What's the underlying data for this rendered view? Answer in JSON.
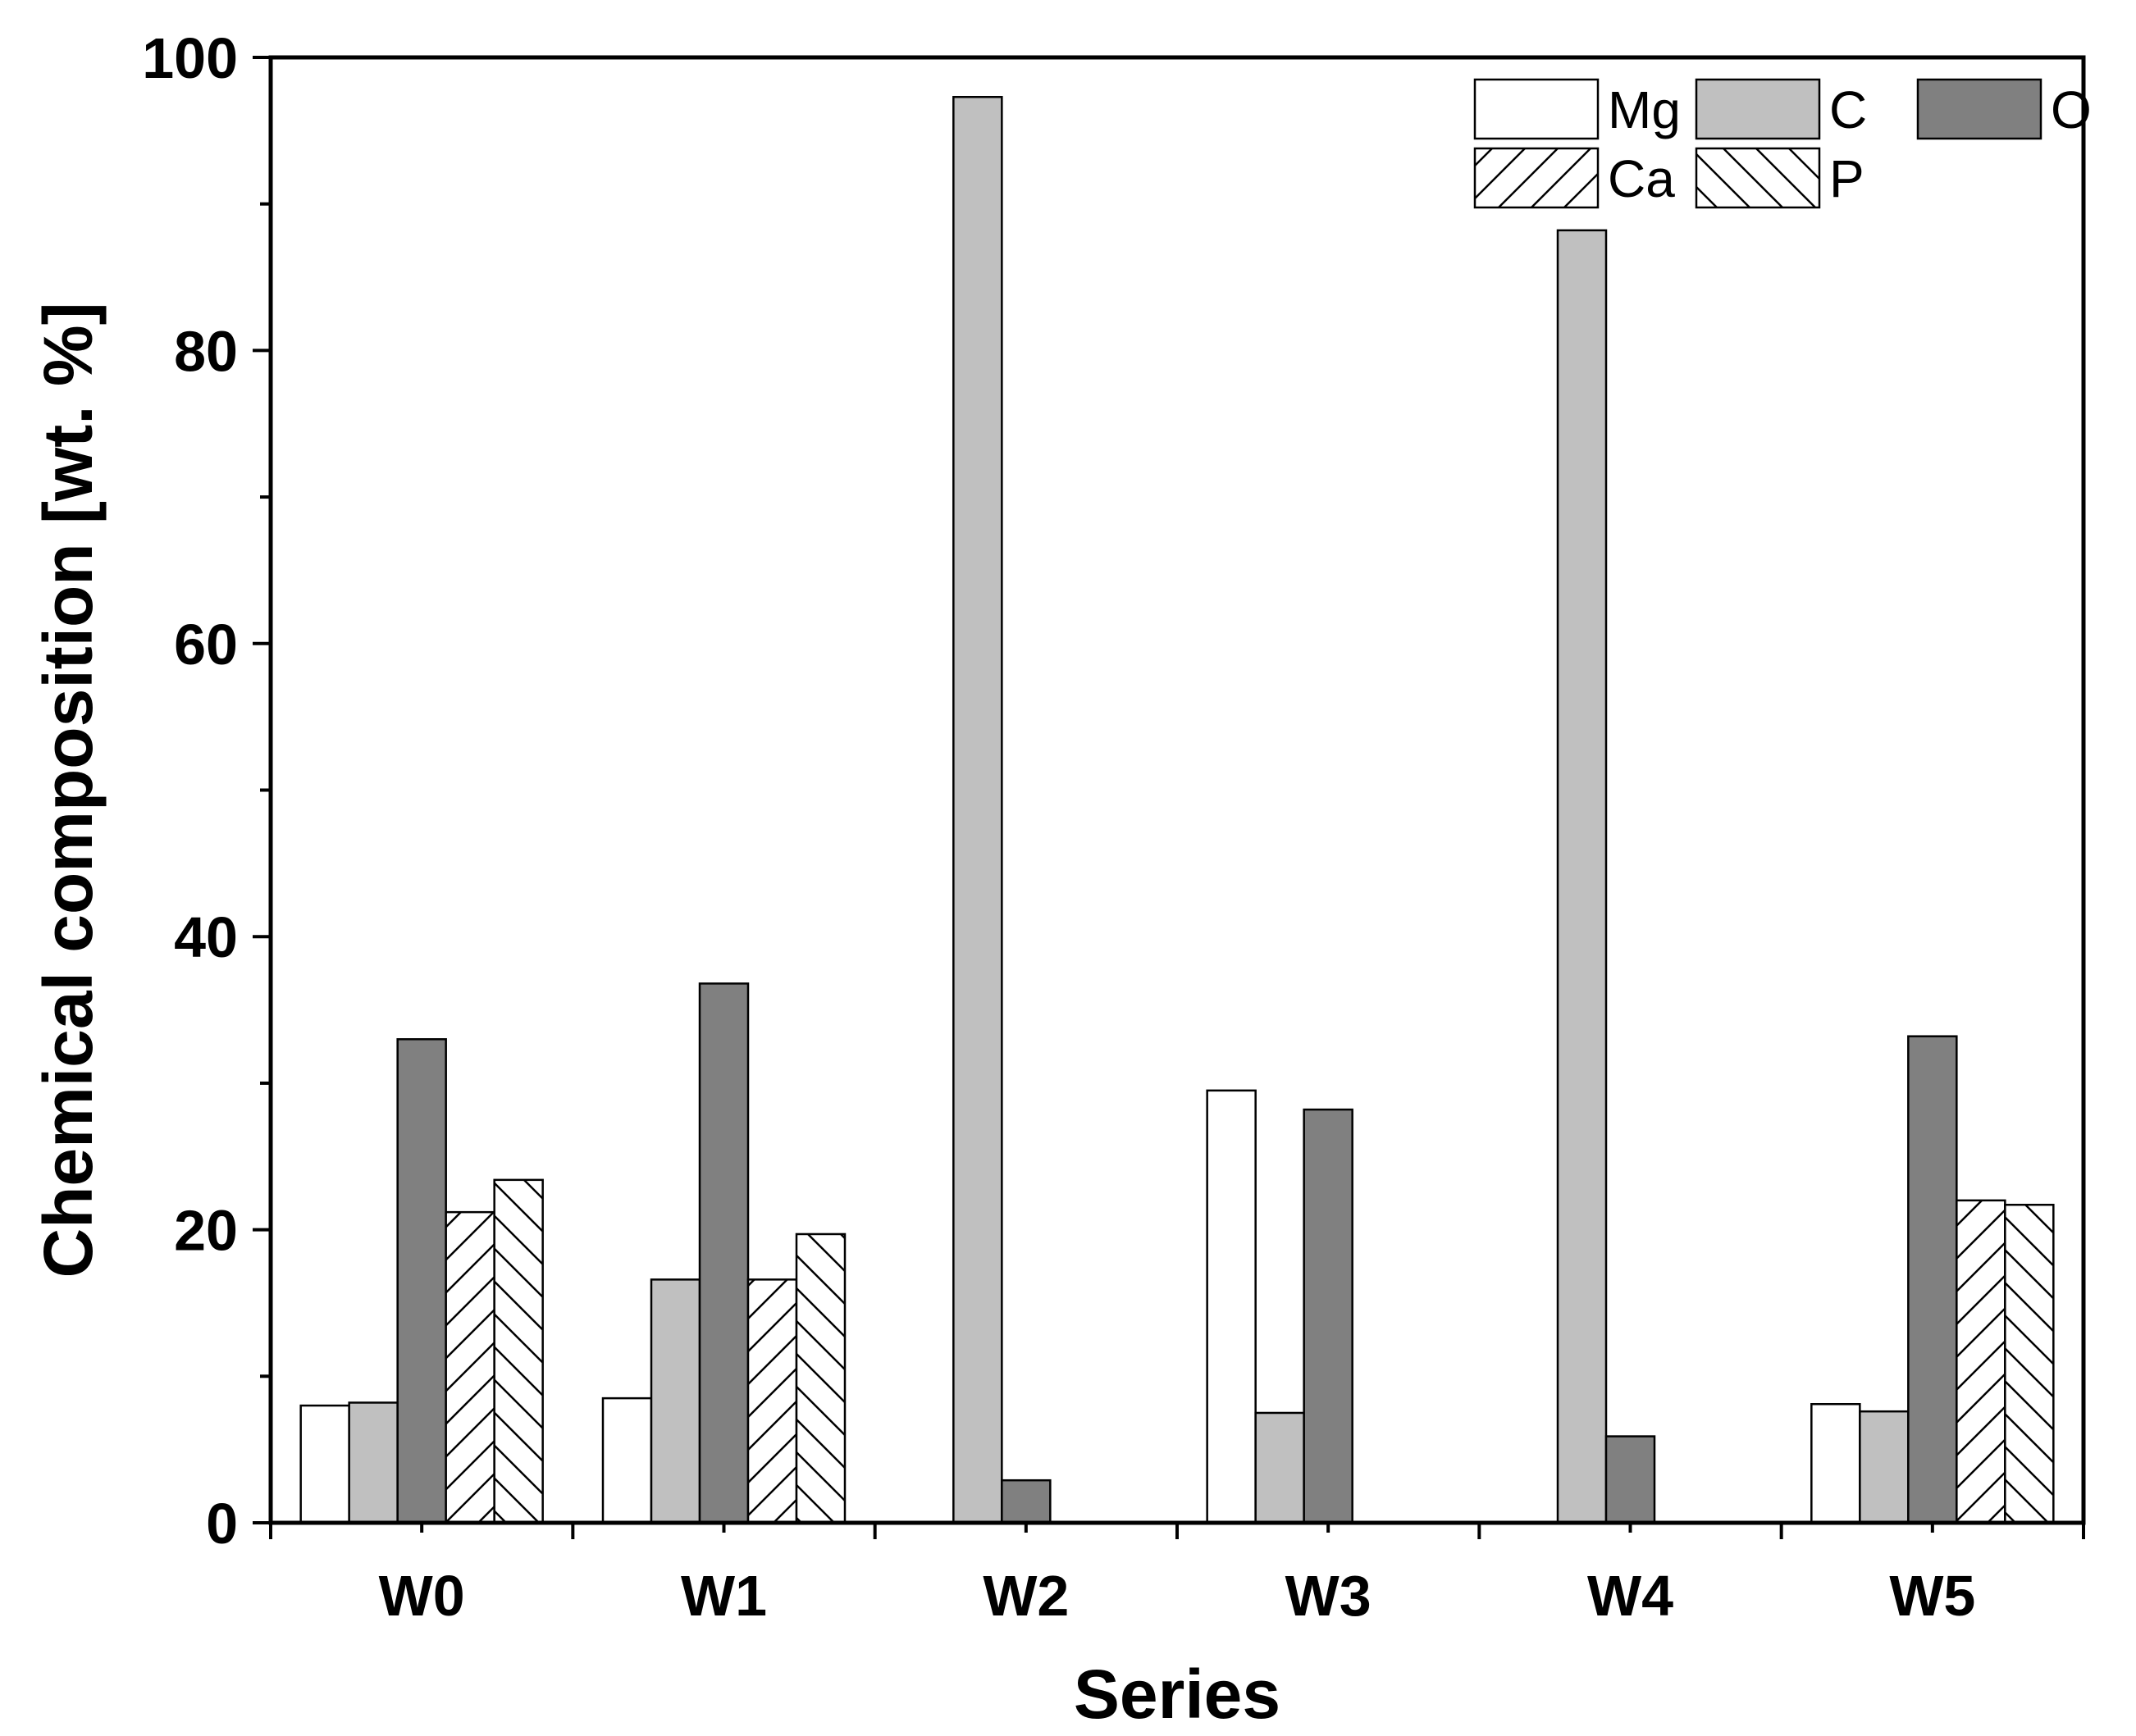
{
  "chart_data": {
    "type": "bar",
    "title": "",
    "xlabel": "Series",
    "ylabel": "Chemical composition [wt. %]",
    "ylim": [
      0,
      100
    ],
    "yticks": [
      0,
      20,
      40,
      60,
      80,
      100
    ],
    "y_minor_step": 10,
    "grid": false,
    "legend_position": "top-right",
    "categories": [
      "W0",
      "W1",
      "W2",
      "W3",
      "W4",
      "W5"
    ],
    "series": [
      {
        "name": "Mg",
        "fill": "#ffffff",
        "pattern": "none",
        "values": [
          8.0,
          8.5,
          null,
          29.5,
          null,
          8.1
        ]
      },
      {
        "name": "C",
        "fill": "#c0c0c0",
        "pattern": "none",
        "values": [
          8.2,
          16.6,
          97.3,
          7.5,
          88.2,
          7.6
        ]
      },
      {
        "name": "O",
        "fill": "#808080",
        "pattern": "none",
        "values": [
          33.0,
          36.8,
          2.9,
          28.2,
          5.9,
          33.2
        ]
      },
      {
        "name": "Ca",
        "fill": "#ffffff",
        "pattern": "forward-hatch",
        "values": [
          21.2,
          16.6,
          null,
          null,
          null,
          22.0
        ]
      },
      {
        "name": "P",
        "fill": "#ffffff",
        "pattern": "back-hatch",
        "values": [
          23.4,
          19.7,
          null,
          null,
          null,
          21.7
        ]
      }
    ]
  }
}
